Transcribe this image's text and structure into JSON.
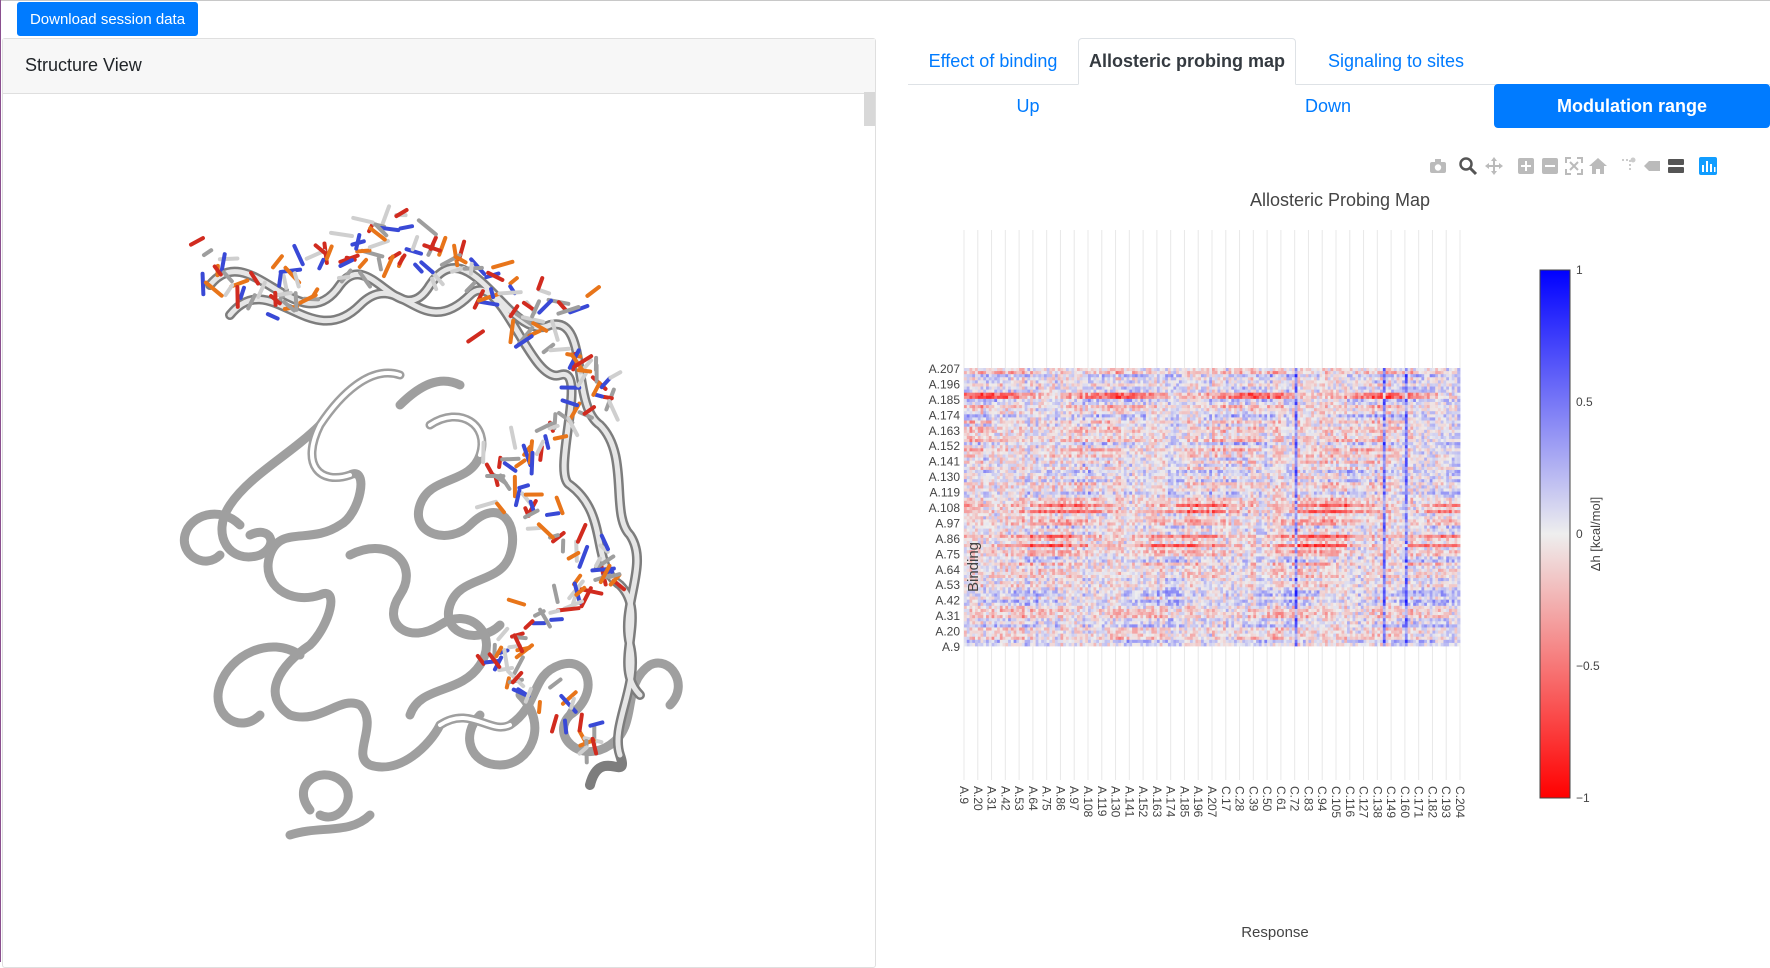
{
  "toolbar": {
    "download_label": "Download session data"
  },
  "structure_view": {
    "title": "Structure View"
  },
  "tabs": [
    {
      "label": "Effect of binding"
    },
    {
      "label": "Allosteric probing map"
    },
    {
      "label": "Signaling to sites"
    }
  ],
  "subtabs": [
    {
      "label": "Up"
    },
    {
      "label": "Down"
    },
    {
      "label": "Modulation range"
    }
  ],
  "modebar": [
    "camera-icon",
    "zoom-icon",
    "pan-icon",
    "zoom-in-icon",
    "zoom-out-icon",
    "autoscale-icon",
    "reset-axes-icon",
    "spike-lines-icon",
    "hover-closest-icon",
    "hover-compare-icon",
    "plotly-logo-icon"
  ],
  "colors": {
    "accent": "#007bff",
    "negative": "#ff0000",
    "positive": "#0000ff",
    "neutral": "#eeeeee"
  },
  "chart_data": {
    "type": "heatmap",
    "title": "Allosteric Probing Map",
    "xlabel": "Response",
    "ylabel": "Binding",
    "x_ticks": [
      "A.9",
      "A.20",
      "A.31",
      "A.42",
      "A.53",
      "A.64",
      "A.75",
      "A.86",
      "A.97",
      "A.108",
      "A.119",
      "A.130",
      "A.141",
      "A.152",
      "A.163",
      "A.174",
      "A.185",
      "A.196",
      "A.207",
      "C.17",
      "C.28",
      "C.39",
      "C.50",
      "C.61",
      "C.72",
      "C.83",
      "C.94",
      "C.105",
      "C.116",
      "C.127",
      "C.138",
      "C.149",
      "C.160",
      "C.171",
      "C.182",
      "C.193",
      "C.204"
    ],
    "y_ticks": [
      "A.9",
      "A.20",
      "A.31",
      "A.42",
      "A.53",
      "A.64",
      "A.75",
      "A.86",
      "A.97",
      "A.108",
      "A.119",
      "A.130",
      "A.141",
      "A.152",
      "A.163",
      "A.174",
      "A.185",
      "A.196",
      "A.207"
    ],
    "colorbar": {
      "title": "Δh [kcal/mol]",
      "min": -1,
      "max": 1,
      "ticks": [
        "1",
        "0.5",
        "0",
        "−0.5",
        "−1"
      ]
    }
  }
}
